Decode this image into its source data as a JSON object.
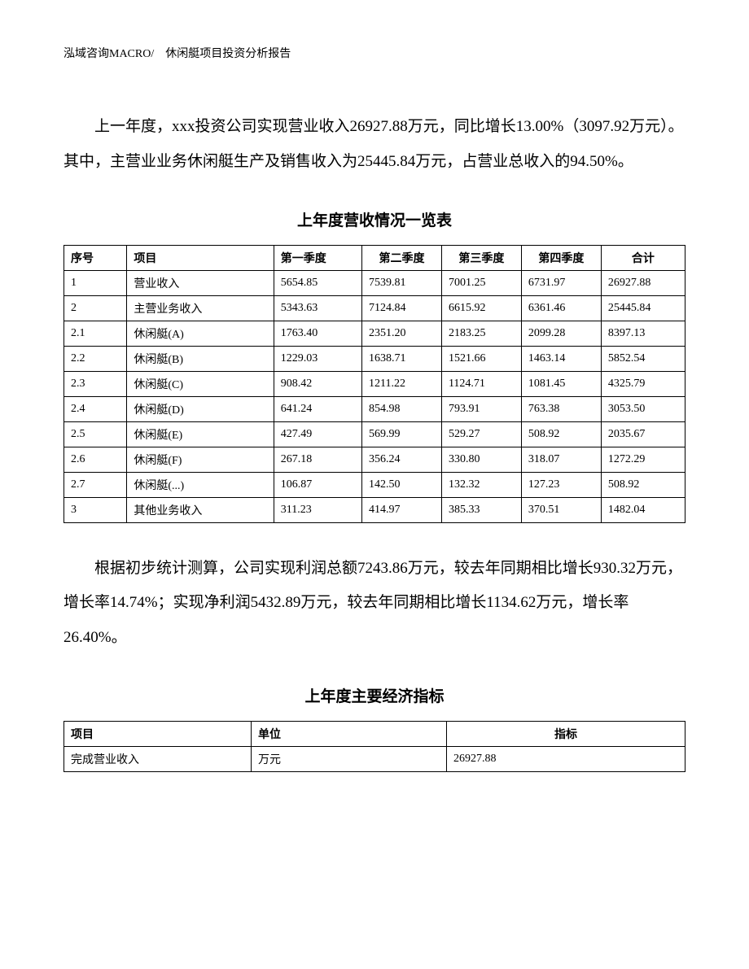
{
  "header": "泓域咨询MACRO/　休闲艇项目投资分析报告",
  "paragraph1": "上一年度，xxx投资公司实现营业收入26927.88万元，同比增长13.00%（3097.92万元）。其中，主营业业务休闲艇生产及销售收入为25445.84万元，占营业总收入的94.50%。",
  "table1": {
    "title": "上年度营收情况一览表",
    "headers": [
      "序号",
      "项目",
      "第一季度",
      "第二季度",
      "第三季度",
      "第四季度",
      "合计"
    ],
    "rows": [
      [
        "1",
        "营业收入",
        "5654.85",
        "7539.81",
        "7001.25",
        "6731.97",
        "26927.88"
      ],
      [
        "2",
        "主营业务收入",
        "5343.63",
        "7124.84",
        "6615.92",
        "6361.46",
        "25445.84"
      ],
      [
        "2.1",
        "休闲艇(A)",
        "1763.40",
        "2351.20",
        "2183.25",
        "2099.28",
        "8397.13"
      ],
      [
        "2.2",
        "休闲艇(B)",
        "1229.03",
        "1638.71",
        "1521.66",
        "1463.14",
        "5852.54"
      ],
      [
        "2.3",
        "休闲艇(C)",
        "908.42",
        "1211.22",
        "1124.71",
        "1081.45",
        "4325.79"
      ],
      [
        "2.4",
        "休闲艇(D)",
        "641.24",
        "854.98",
        "793.91",
        "763.38",
        "3053.50"
      ],
      [
        "2.5",
        "休闲艇(E)",
        "427.49",
        "569.99",
        "529.27",
        "508.92",
        "2035.67"
      ],
      [
        "2.6",
        "休闲艇(F)",
        "267.18",
        "356.24",
        "330.80",
        "318.07",
        "1272.29"
      ],
      [
        "2.7",
        "休闲艇(...)",
        "106.87",
        "142.50",
        "132.32",
        "127.23",
        "508.92"
      ],
      [
        "3",
        "其他业务收入",
        "311.23",
        "414.97",
        "385.33",
        "370.51",
        "1482.04"
      ]
    ]
  },
  "paragraph2": "根据初步统计测算，公司实现利润总额7243.86万元，较去年同期相比增长930.32万元，增长率14.74%；实现净利润5432.89万元，较去年同期相比增长1134.62万元，增长率26.40%。",
  "table2": {
    "title": "上年度主要经济指标",
    "headers": [
      "项目",
      "单位",
      "指标"
    ],
    "rows": [
      [
        "完成营业收入",
        "万元",
        "26927.88"
      ]
    ]
  }
}
